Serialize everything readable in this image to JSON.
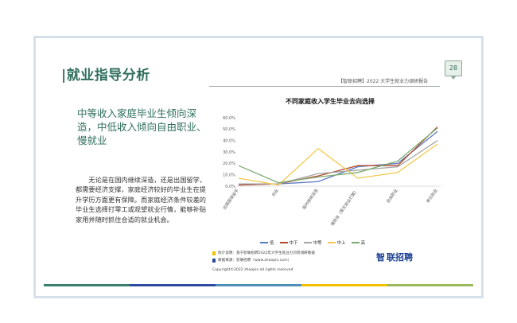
{
  "slide": {
    "title": "|就业指导分析",
    "report_title": "【智联招聘】2022 大学生就业力调研报告",
    "page_number": "28",
    "headline": "中等收入家庭毕业生倾向深造，中低收入倾向自由职业、慢就业",
    "body": "无论是在国内继续深造，还是出国留学，都需要经济支撑，家庭经济较好的毕业生在提升学历方面更有保障。而家庭经济条件较差的毕业生选择打零工或观望就业行情，能够补贴家用并随时抓住合适的就业机会。",
    "notes": [
      {
        "text": "统计说明：基于智联招聘2022年大学生就业力问卷调研数据",
        "color": "#f2c200"
      },
      {
        "text": "数据来源：智联招聘（www.zhaopin.com）",
        "color": "#2b4aa0"
      }
    ],
    "copyright": "Copyright©2022 zhaopin all rights reserved",
    "logo_text": "联招聘",
    "logo_mark": "智",
    "stripe_colors": [
      "#3a7f6e",
      "#2b4aa0",
      "#4e8fb7",
      "#f2c200",
      "#9ab85c"
    ]
  },
  "chart_data": {
    "type": "line",
    "title": "不同家庭收入学生毕业去向选择",
    "categories": [
      "出国国境留学",
      "创业",
      "国内继续深造",
      "慢就业（暂无就业打算）",
      "自由职业",
      "单位就业"
    ],
    "yticks": [
      "60.0%",
      "50.0%",
      "40.0%",
      "30.0%",
      "20.0%",
      "10.0%",
      "0.0%"
    ],
    "ylim": [
      0,
      60
    ],
    "series": [
      {
        "name": "低",
        "color": "#5a7bbf",
        "values": [
          1,
          2,
          4,
          17,
          20,
          48
        ]
      },
      {
        "name": "中下",
        "color": "#b44a2c",
        "values": [
          1,
          2,
          9,
          18,
          18,
          52
        ]
      },
      {
        "name": "中等",
        "color": "#a5a5a5",
        "values": [
          2,
          2,
          11,
          14,
          17,
          40
        ]
      },
      {
        "name": "中上",
        "color": "#f2c94c",
        "values": [
          7,
          1,
          33,
          7,
          12,
          37
        ]
      },
      {
        "name": "高",
        "color": "#7cab6e",
        "values": [
          18,
          3,
          8,
          12,
          22,
          51
        ]
      }
    ]
  }
}
